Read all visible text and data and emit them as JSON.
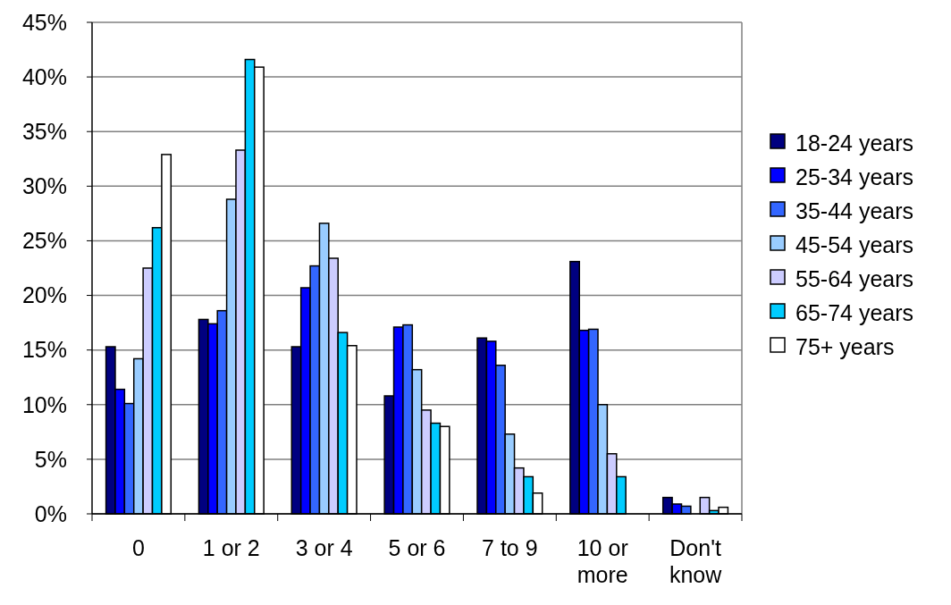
{
  "chart_data": {
    "type": "bar",
    "categories": [
      "0",
      "1 or 2",
      "3 or 4",
      "5 or 6",
      "7 to 9",
      "10 or\nmore",
      "Don't\nknow"
    ],
    "series": [
      {
        "name": "18-24 years",
        "color": "#000080",
        "values": [
          15.3,
          17.8,
          15.3,
          10.8,
          16.1,
          23.1,
          1.5
        ]
      },
      {
        "name": "25-34 years",
        "color": "#0000ff",
        "values": [
          11.4,
          17.4,
          20.7,
          17.1,
          15.8,
          16.8,
          0.9
        ]
      },
      {
        "name": "35-44 years",
        "color": "#3366ff",
        "values": [
          10.1,
          18.6,
          22.7,
          17.3,
          13.6,
          16.9,
          0.7
        ]
      },
      {
        "name": "45-54 years",
        "color": "#99ccff",
        "values": [
          14.2,
          28.8,
          26.6,
          13.2,
          7.3,
          10.0,
          null
        ]
      },
      {
        "name": "55-64 years",
        "color": "#ccccff",
        "values": [
          22.5,
          33.3,
          23.4,
          9.5,
          4.2,
          5.5,
          1.5
        ]
      },
      {
        "name": "65-74 years",
        "color": "#00ccff",
        "values": [
          26.2,
          41.6,
          16.6,
          8.3,
          3.4,
          3.4,
          0.3
        ]
      },
      {
        "name": "75+ years",
        "color": "#ffffff",
        "values": [
          32.9,
          40.9,
          15.4,
          8.0,
          1.9,
          null,
          0.6
        ]
      }
    ],
    "ylim": [
      0,
      45
    ],
    "yticks": [
      {
        "value": 0,
        "label": "0%"
      },
      {
        "value": 5,
        "label": "5%"
      },
      {
        "value": 10,
        "label": "10%"
      },
      {
        "value": 15,
        "label": "15%"
      },
      {
        "value": 20,
        "label": "20%"
      },
      {
        "value": 25,
        "label": "25%"
      },
      {
        "value": 30,
        "label": "30%"
      },
      {
        "value": 35,
        "label": "35%"
      },
      {
        "value": 40,
        "label": "40%"
      },
      {
        "value": 45,
        "label": "45%"
      }
    ],
    "grid": "y",
    "legend": "right"
  }
}
